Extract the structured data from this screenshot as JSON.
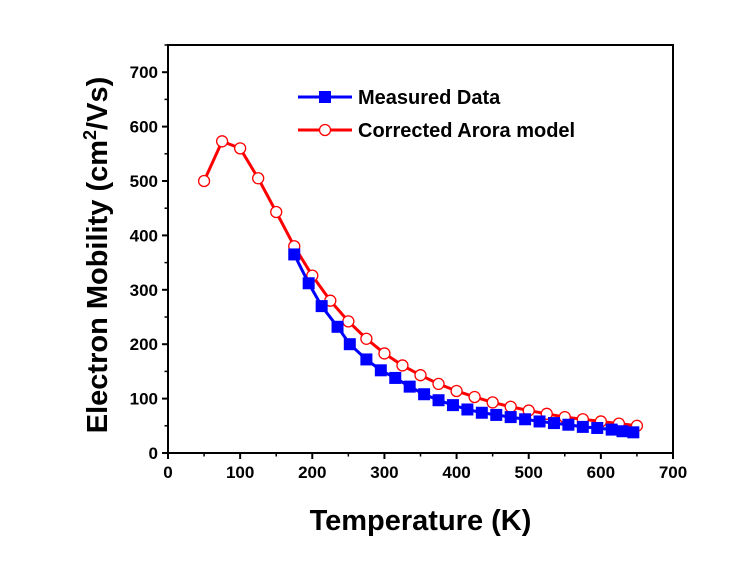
{
  "chart_data": {
    "type": "line",
    "title": "",
    "xlabel": "Temperature (K)",
    "ylabel_prefix": "Electron Mobility (cm",
    "ylabel_sup": "2",
    "ylabel_suffix": "/Vs)",
    "xlim": [
      0,
      700
    ],
    "ylim": [
      0,
      750
    ],
    "xticks": [
      "0",
      "100",
      "200",
      "300",
      "400",
      "500",
      "600",
      "700"
    ],
    "yticks": [
      "0",
      "100",
      "200",
      "300",
      "400",
      "500",
      "600",
      "700"
    ],
    "grid": false,
    "legend_position": "top-right",
    "series": [
      {
        "name": "Measured Data",
        "color": "#0000ff",
        "marker": "square-filled",
        "x": [
          175,
          195,
          213,
          235,
          252,
          275,
          295,
          315,
          335,
          355,
          375,
          395,
          415,
          435,
          455,
          475,
          495,
          515,
          535,
          555,
          575,
          595,
          615,
          630,
          645
        ],
        "y": [
          365,
          312,
          270,
          232,
          200,
          172,
          152,
          138,
          122,
          108,
          97,
          88,
          80,
          74,
          70,
          66,
          62,
          58,
          55,
          52,
          48,
          46,
          43,
          40,
          38
        ]
      },
      {
        "name": "Corrected Arora model",
        "color": "#ff0000",
        "marker": "circle-open",
        "x": [
          50,
          75,
          100,
          125,
          150,
          175,
          200,
          225,
          250,
          275,
          300,
          325,
          350,
          375,
          400,
          425,
          450,
          475,
          500,
          525,
          550,
          575,
          600,
          625,
          650
        ],
        "y": [
          500,
          573,
          560,
          505,
          443,
          380,
          326,
          280,
          242,
          210,
          183,
          161,
          143,
          127,
          114,
          103,
          93,
          85,
          78,
          72,
          66,
          62,
          58,
          54,
          50
        ]
      }
    ]
  }
}
